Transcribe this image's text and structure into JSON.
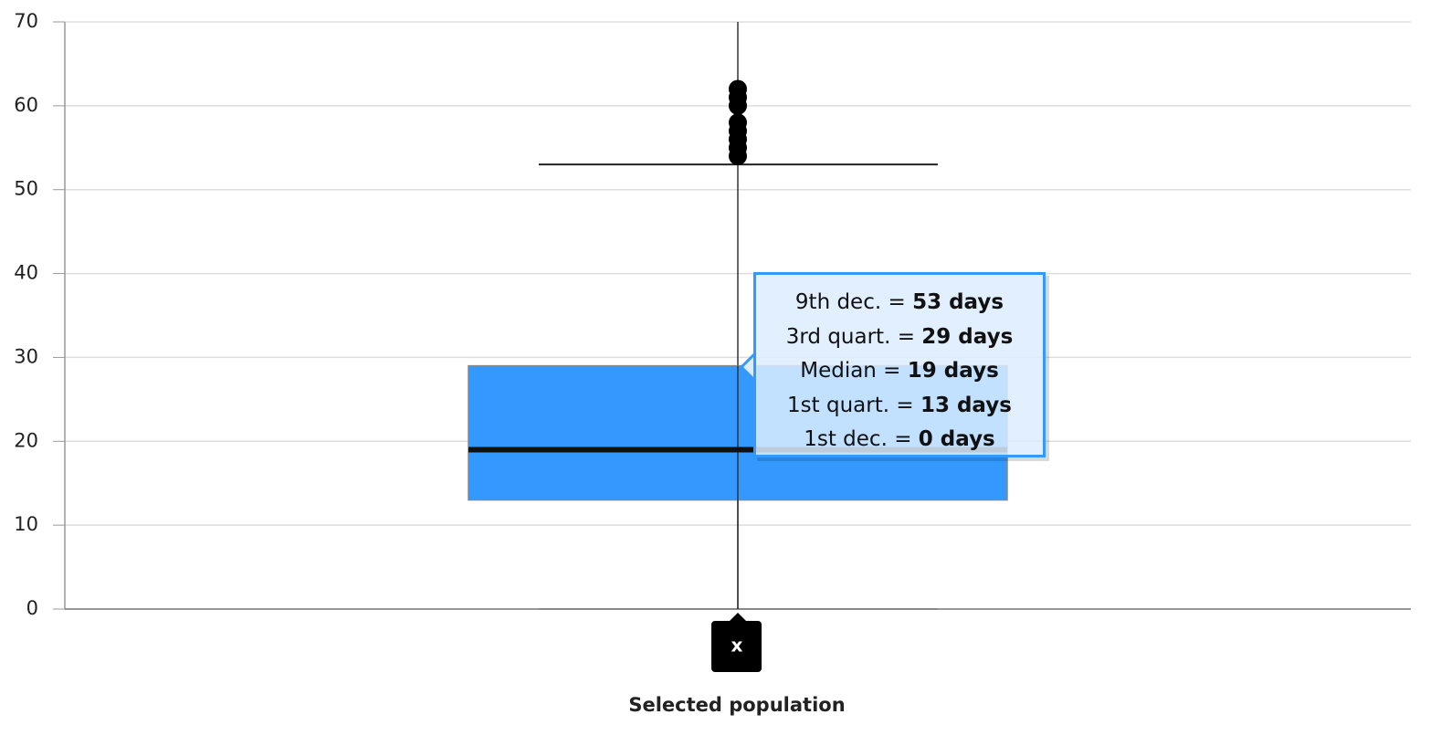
{
  "chart_data": {
    "type": "box",
    "categories": [
      "Selected population"
    ],
    "marker_label": "x",
    "box": {
      "whislo": 0,
      "q1": 13,
      "med": 19,
      "q3": 29,
      "whishi": 53
    },
    "outliers": [
      54,
      55,
      56,
      57,
      58,
      60,
      61,
      62
    ],
    "color": "#3399ff",
    "ylim": [
      0,
      70
    ],
    "yticks": [
      0,
      10,
      20,
      30,
      40,
      50,
      60,
      70
    ],
    "grid": true,
    "tooltip": [
      {
        "name": "9th dec. =",
        "value": "53 days"
      },
      {
        "name": "3rd quart. =",
        "value": "29 days"
      },
      {
        "name": "Median =",
        "value": "19 days"
      },
      {
        "name": "1st quart. =",
        "value": "13 days"
      },
      {
        "name": "1st dec. =",
        "value": "0 days"
      }
    ]
  }
}
